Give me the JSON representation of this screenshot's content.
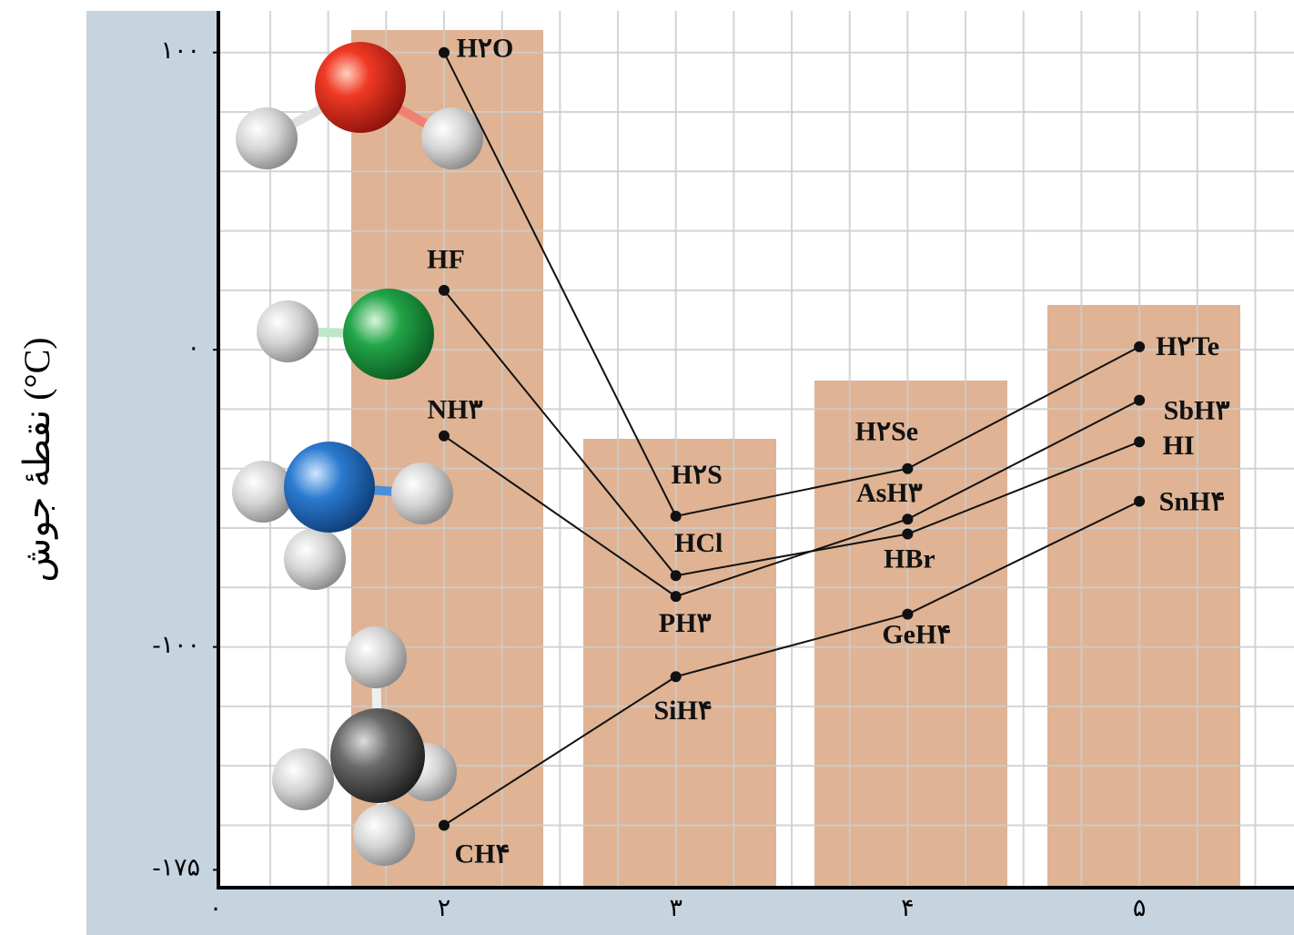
{
  "chart_data": {
    "type": "line",
    "y_label": "نقطهٔ جوش (°C)",
    "categories": [
      "۲",
      "۳",
      "۴",
      "۵"
    ],
    "origin_label": "۰",
    "ylim": [
      -181,
      114
    ],
    "yticks": [
      {
        "value": 100,
        "label": "۱۰۰"
      },
      {
        "value": 0,
        "label": "۰"
      },
      {
        "value": -100,
        "label": "-۱۰۰"
      },
      {
        "value": -175,
        "label": "-۱۷۵"
      }
    ],
    "grid": [
      100,
      80,
      60,
      40,
      20,
      0,
      -20,
      -40,
      -60,
      -80,
      -100,
      -120,
      -140,
      -160
    ],
    "color": "#111111",
    "series": [
      {
        "values": [
          100,
          -56,
          -40,
          1
        ],
        "point_labels": [
          "H۲O",
          "H۲S",
          "H۲Se",
          "H۲Te"
        ]
      },
      {
        "values": [
          20,
          -76,
          -62,
          -31
        ],
        "point_labels": [
          "HF",
          "HCl",
          "HBr",
          "HI"
        ]
      },
      {
        "values": [
          -29,
          -83,
          -57,
          -17
        ],
        "point_labels": [
          "NH۳",
          "PH۳",
          "AsH۳",
          "SbH۳"
        ]
      },
      {
        "values": [
          -160,
          -110,
          -89,
          -51
        ],
        "point_labels": [
          "CH۴",
          "SiH۴",
          "GeH۴",
          "SnH۴"
        ]
      }
    ]
  }
}
